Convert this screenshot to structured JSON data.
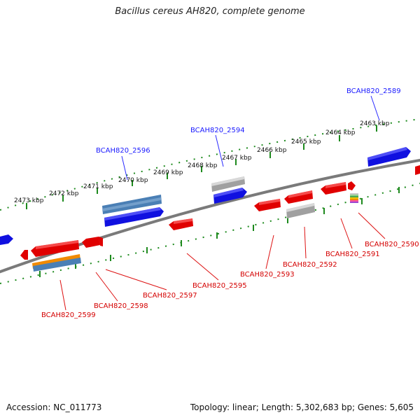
{
  "title": "Bacillus cereus AH820, complete genome",
  "footer": {
    "accession": "Accession: NC_011773",
    "topology": "Topology: linear; Length: 5,302,683 bp; Genes: 5,605"
  },
  "colors": {
    "backbone": "#7a7a7a",
    "ruler": "#1d8a1d",
    "forward_gene": "#1010e0",
    "reverse_gene": "#e00000",
    "pseudo_gene": "#a0a0a0",
    "orf_blue": "#4a7fb5",
    "orf_orange": "#f08a00",
    "top_label": "#1a1aff",
    "bottom_label": "#d40000",
    "leader_top": "#2a2aff",
    "leader_bottom": "#dd1111"
  },
  "ruler_labels": [
    "2473 kbp",
    "2472 kbp",
    "2471 kbp",
    "2470 kbp",
    "2469 kbp",
    "2468 kbp",
    "2467 kbp",
    "2466 kbp",
    "2465 kbp",
    "2464 kbp",
    "2463 kbp"
  ],
  "top_gene_labels": [
    "BCAH820_2596",
    "BCAH820_2594",
    "BCAH820_2589"
  ],
  "bottom_gene_labels": [
    "BCAH820_2599",
    "BCAH820_2598",
    "BCAH820_2597",
    "BCAH820_2595",
    "BCAH820_2593",
    "BCAH820_2592",
    "BCAH820_2591",
    "BCAH820_2590"
  ]
}
